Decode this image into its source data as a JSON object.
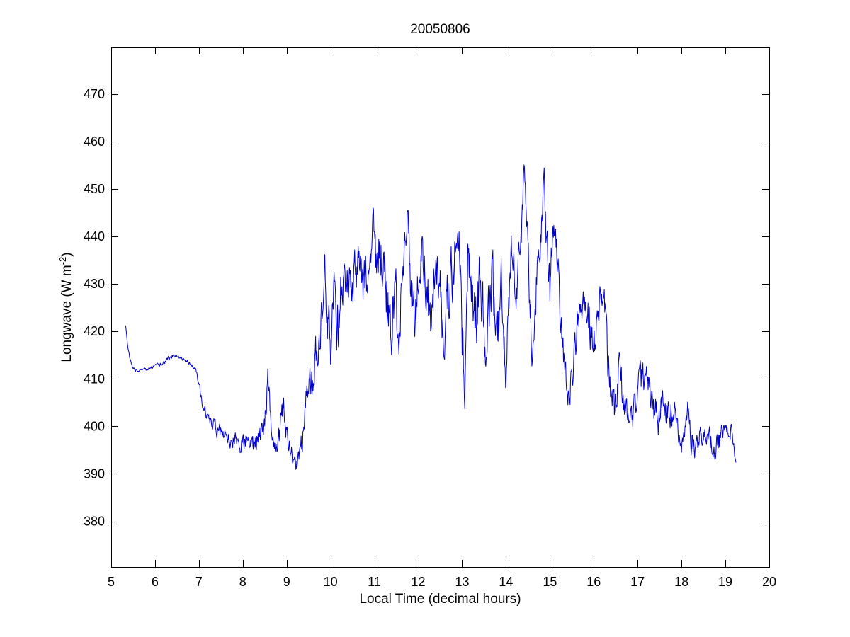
{
  "chart_data": {
    "type": "line",
    "title": "20050806",
    "xlabel": "Local Time (decimal hours)",
    "ylabel": {
      "main": "Longwave (W m",
      "sup": "-2",
      "close": ")"
    },
    "line_color": "#0000CC",
    "axis_color": "#000000",
    "background": "#FFFFFF",
    "legend": "none",
    "axes": {
      "xlim": [
        5,
        20
      ],
      "ylim": [
        370.4,
        479.8
      ],
      "xticks": [
        5,
        6,
        7,
        8,
        9,
        10,
        11,
        12,
        13,
        14,
        15,
        16,
        17,
        18,
        19,
        20
      ],
      "yticks": [
        380,
        390,
        400,
        410,
        420,
        430,
        440,
        450,
        460,
        470
      ],
      "tick_length": 10,
      "grid": false,
      "box": true,
      "tick_font_px": 18
    },
    "series": [
      {
        "name": "longwave",
        "x_start": 5.33,
        "x_end": 19.24,
        "clamp": [
          390.3,
          456.8
        ],
        "sampling": {
          "dt": 0.01,
          "seed": 20050806,
          "ar": 0.45
        },
        "anchors": [
          [
            5.33,
            421.0,
            0.2
          ],
          [
            5.37,
            417.5,
            0.2
          ],
          [
            5.42,
            414.5,
            0.2
          ],
          [
            5.48,
            412.5,
            0.2
          ],
          [
            5.55,
            411.7,
            0.3
          ],
          [
            5.7,
            411.8,
            0.3
          ],
          [
            5.9,
            412.3,
            0.3
          ],
          [
            6.1,
            413.0,
            0.4
          ],
          [
            6.3,
            414.2,
            0.4
          ],
          [
            6.45,
            415.0,
            0.4
          ],
          [
            6.6,
            414.6,
            0.4
          ],
          [
            6.75,
            413.6,
            0.4
          ],
          [
            6.88,
            412.5,
            0.4
          ],
          [
            6.95,
            411.0,
            0.5
          ],
          [
            7.02,
            408.0,
            0.6
          ],
          [
            7.08,
            405.0,
            0.8
          ],
          [
            7.15,
            403.0,
            0.8
          ],
          [
            7.25,
            401.5,
            1.0
          ],
          [
            7.35,
            400.0,
            1.2
          ],
          [
            7.5,
            398.5,
            1.4
          ],
          [
            7.65,
            397.5,
            1.5
          ],
          [
            7.8,
            396.8,
            1.6
          ],
          [
            8.0,
            396.5,
            1.8
          ],
          [
            8.2,
            397.0,
            1.8
          ],
          [
            8.4,
            397.5,
            2.0
          ],
          [
            8.52,
            402.0,
            2.5
          ],
          [
            8.57,
            410.5,
            1.5
          ],
          [
            8.62,
            404.0,
            2.0
          ],
          [
            8.7,
            397.5,
            2.0
          ],
          [
            8.78,
            393.5,
            1.5
          ],
          [
            8.87,
            401.0,
            2.5
          ],
          [
            8.93,
            404.5,
            2.0
          ],
          [
            9.0,
            398.0,
            2.0
          ],
          [
            9.08,
            395.0,
            2.0
          ],
          [
            9.15,
            392.5,
            1.5
          ],
          [
            9.22,
            391.0,
            1.2
          ],
          [
            9.3,
            393.5,
            2.0
          ],
          [
            9.38,
            398.0,
            3.0
          ],
          [
            9.45,
            404.0,
            4.0
          ],
          [
            9.52,
            411.0,
            4.0
          ],
          [
            9.58,
            407.0,
            4.0
          ],
          [
            9.65,
            416.0,
            4.0
          ],
          [
            9.72,
            411.0,
            4.0
          ],
          [
            9.8,
            425.0,
            5.0
          ],
          [
            9.86,
            436.0,
            3.0
          ],
          [
            9.92,
            424.0,
            5.0
          ],
          [
            10.0,
            417.0,
            5.0
          ],
          [
            10.08,
            426.0,
            5.0
          ],
          [
            10.15,
            420.0,
            6.0
          ],
          [
            10.25,
            429.0,
            5.0
          ],
          [
            10.35,
            431.0,
            4.0
          ],
          [
            10.45,
            428.0,
            5.0
          ],
          [
            10.55,
            432.0,
            4.0
          ],
          [
            10.65,
            433.5,
            4.0
          ],
          [
            10.75,
            430.0,
            5.0
          ],
          [
            10.85,
            434.0,
            4.0
          ],
          [
            10.93,
            438.0,
            4.0
          ],
          [
            10.98,
            443.0,
            2.5
          ],
          [
            11.05,
            432.0,
            5.0
          ],
          [
            11.12,
            439.0,
            4.0
          ],
          [
            11.2,
            433.0,
            5.0
          ],
          [
            11.3,
            425.0,
            6.0
          ],
          [
            11.38,
            418.0,
            5.0
          ],
          [
            11.45,
            428.0,
            6.0
          ],
          [
            11.55,
            420.0,
            6.0
          ],
          [
            11.62,
            430.0,
            5.0
          ],
          [
            11.7,
            438.0,
            4.0
          ],
          [
            11.76,
            444.0,
            2.5
          ],
          [
            11.84,
            430.0,
            6.0
          ],
          [
            11.92,
            422.0,
            5.0
          ],
          [
            12.0,
            432.0,
            5.0
          ],
          [
            12.1,
            436.0,
            4.0
          ],
          [
            12.2,
            430.0,
            6.0
          ],
          [
            12.3,
            424.0,
            6.0
          ],
          [
            12.4,
            437.0,
            4.0
          ],
          [
            12.5,
            428.0,
            6.0
          ],
          [
            12.6,
            418.0,
            5.0
          ],
          [
            12.7,
            428.0,
            6.0
          ],
          [
            12.8,
            434.0,
            5.0
          ],
          [
            12.93,
            440.0,
            3.0
          ],
          [
            13.0,
            420.0,
            6.0
          ],
          [
            13.06,
            406.0,
            2.0
          ],
          [
            13.13,
            436.0,
            4.0
          ],
          [
            13.22,
            430.0,
            5.0
          ],
          [
            13.3,
            420.0,
            6.0
          ],
          [
            13.4,
            432.0,
            5.0
          ],
          [
            13.48,
            424.0,
            6.0
          ],
          [
            13.54,
            411.0,
            2.5
          ],
          [
            13.62,
            428.0,
            6.0
          ],
          [
            13.7,
            432.0,
            5.0
          ],
          [
            13.8,
            418.0,
            6.0
          ],
          [
            13.9,
            430.0,
            5.0
          ],
          [
            14.0,
            409.0,
            2.5
          ],
          [
            14.08,
            432.0,
            5.0
          ],
          [
            14.14,
            439.0,
            3.0
          ],
          [
            14.22,
            427.0,
            4.0
          ],
          [
            14.3,
            434.0,
            4.0
          ],
          [
            14.36,
            444.0,
            4.0
          ],
          [
            14.42,
            455.0,
            2.0
          ],
          [
            14.48,
            444.0,
            4.0
          ],
          [
            14.54,
            428.0,
            5.0
          ],
          [
            14.6,
            413.0,
            2.5
          ],
          [
            14.68,
            428.0,
            5.0
          ],
          [
            14.76,
            437.0,
            4.0
          ],
          [
            14.82,
            444.0,
            4.0
          ],
          [
            14.87,
            452.0,
            2.0
          ],
          [
            14.93,
            436.0,
            5.0
          ],
          [
            15.0,
            428.0,
            4.0
          ],
          [
            15.06,
            441.0,
            3.0
          ],
          [
            15.12,
            443.0,
            2.5
          ],
          [
            15.2,
            430.0,
            4.0
          ],
          [
            15.28,
            418.0,
            4.0
          ],
          [
            15.36,
            410.0,
            3.0
          ],
          [
            15.43,
            406.5,
            2.5
          ],
          [
            15.52,
            412.0,
            4.0
          ],
          [
            15.6,
            420.0,
            4.0
          ],
          [
            15.7,
            425.5,
            3.0
          ],
          [
            15.8,
            426.5,
            3.0
          ],
          [
            15.9,
            421.0,
            4.0
          ],
          [
            16.0,
            417.0,
            4.0
          ],
          [
            16.08,
            424.0,
            4.0
          ],
          [
            16.18,
            428.5,
            2.5
          ],
          [
            16.28,
            420.0,
            5.0
          ],
          [
            16.38,
            408.0,
            4.0
          ],
          [
            16.48,
            403.5,
            3.0
          ],
          [
            16.58,
            411.0,
            4.0
          ],
          [
            16.68,
            407.0,
            3.5
          ],
          [
            16.78,
            400.5,
            2.5
          ],
          [
            16.88,
            401.5,
            3.0
          ],
          [
            16.98,
            406.0,
            3.0
          ],
          [
            17.08,
            409.5,
            3.0
          ],
          [
            17.18,
            411.0,
            2.5
          ],
          [
            17.28,
            407.5,
            3.0
          ],
          [
            17.38,
            403.0,
            3.0
          ],
          [
            17.48,
            400.5,
            3.0
          ],
          [
            17.58,
            406.0,
            3.0
          ],
          [
            17.68,
            404.0,
            3.0
          ],
          [
            17.78,
            402.5,
            3.0
          ],
          [
            17.84,
            404.5,
            2.0
          ],
          [
            17.92,
            398.5,
            2.5
          ],
          [
            18.0,
            397.5,
            2.5
          ],
          [
            18.08,
            401.5,
            2.5
          ],
          [
            18.14,
            403.5,
            2.0
          ],
          [
            18.22,
            397.0,
            2.5
          ],
          [
            18.34,
            395.5,
            2.0
          ],
          [
            18.42,
            398.5,
            2.5
          ],
          [
            18.5,
            399.5,
            2.0
          ],
          [
            18.58,
            396.5,
            2.0
          ],
          [
            18.66,
            397.5,
            2.0
          ],
          [
            18.76,
            396.0,
            2.0
          ],
          [
            18.84,
            397.0,
            2.5
          ],
          [
            18.92,
            398.5,
            2.0
          ],
          [
            19.0,
            399.0,
            1.5
          ],
          [
            19.08,
            398.5,
            1.5
          ],
          [
            19.14,
            399.5,
            1.2
          ],
          [
            19.18,
            396.5,
            1.0
          ],
          [
            19.22,
            393.5,
            0.5
          ],
          [
            19.24,
            392.5,
            0.3
          ]
        ]
      }
    ]
  }
}
